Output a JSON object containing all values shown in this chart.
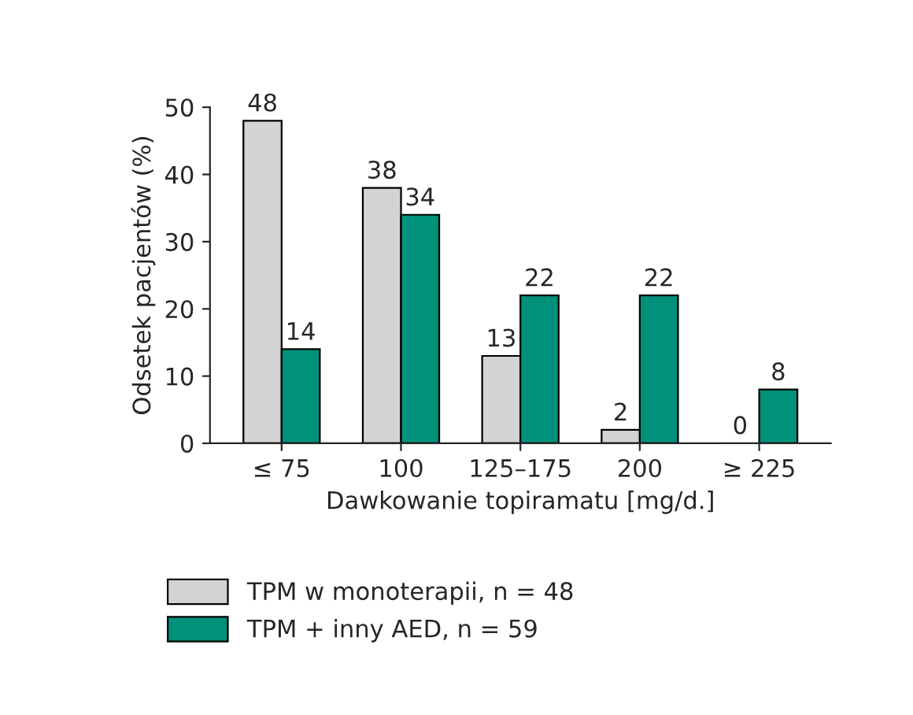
{
  "chart_data": {
    "type": "bar",
    "xlabel": "Dawkowanie topiramatu [mg/d.]",
    "ylabel": "Odsetek pacjentów (%)",
    "categories": [
      "≤ 75",
      "100",
      "125–175",
      "200",
      "≥ 225"
    ],
    "series": [
      {
        "name": "TPM w monoterapii, n = 48",
        "color": "#d3d3d3",
        "values": [
          48,
          38,
          13,
          2,
          0
        ]
      },
      {
        "name": "TPM + inny AED, n = 59",
        "color": "#00917a",
        "values": [
          14,
          34,
          22,
          22,
          8
        ]
      }
    ],
    "ylim": [
      0,
      50
    ],
    "yticks": [
      0,
      10,
      20,
      30,
      40,
      50
    ],
    "data_labels": true,
    "grid": false,
    "legend": "bottom"
  }
}
